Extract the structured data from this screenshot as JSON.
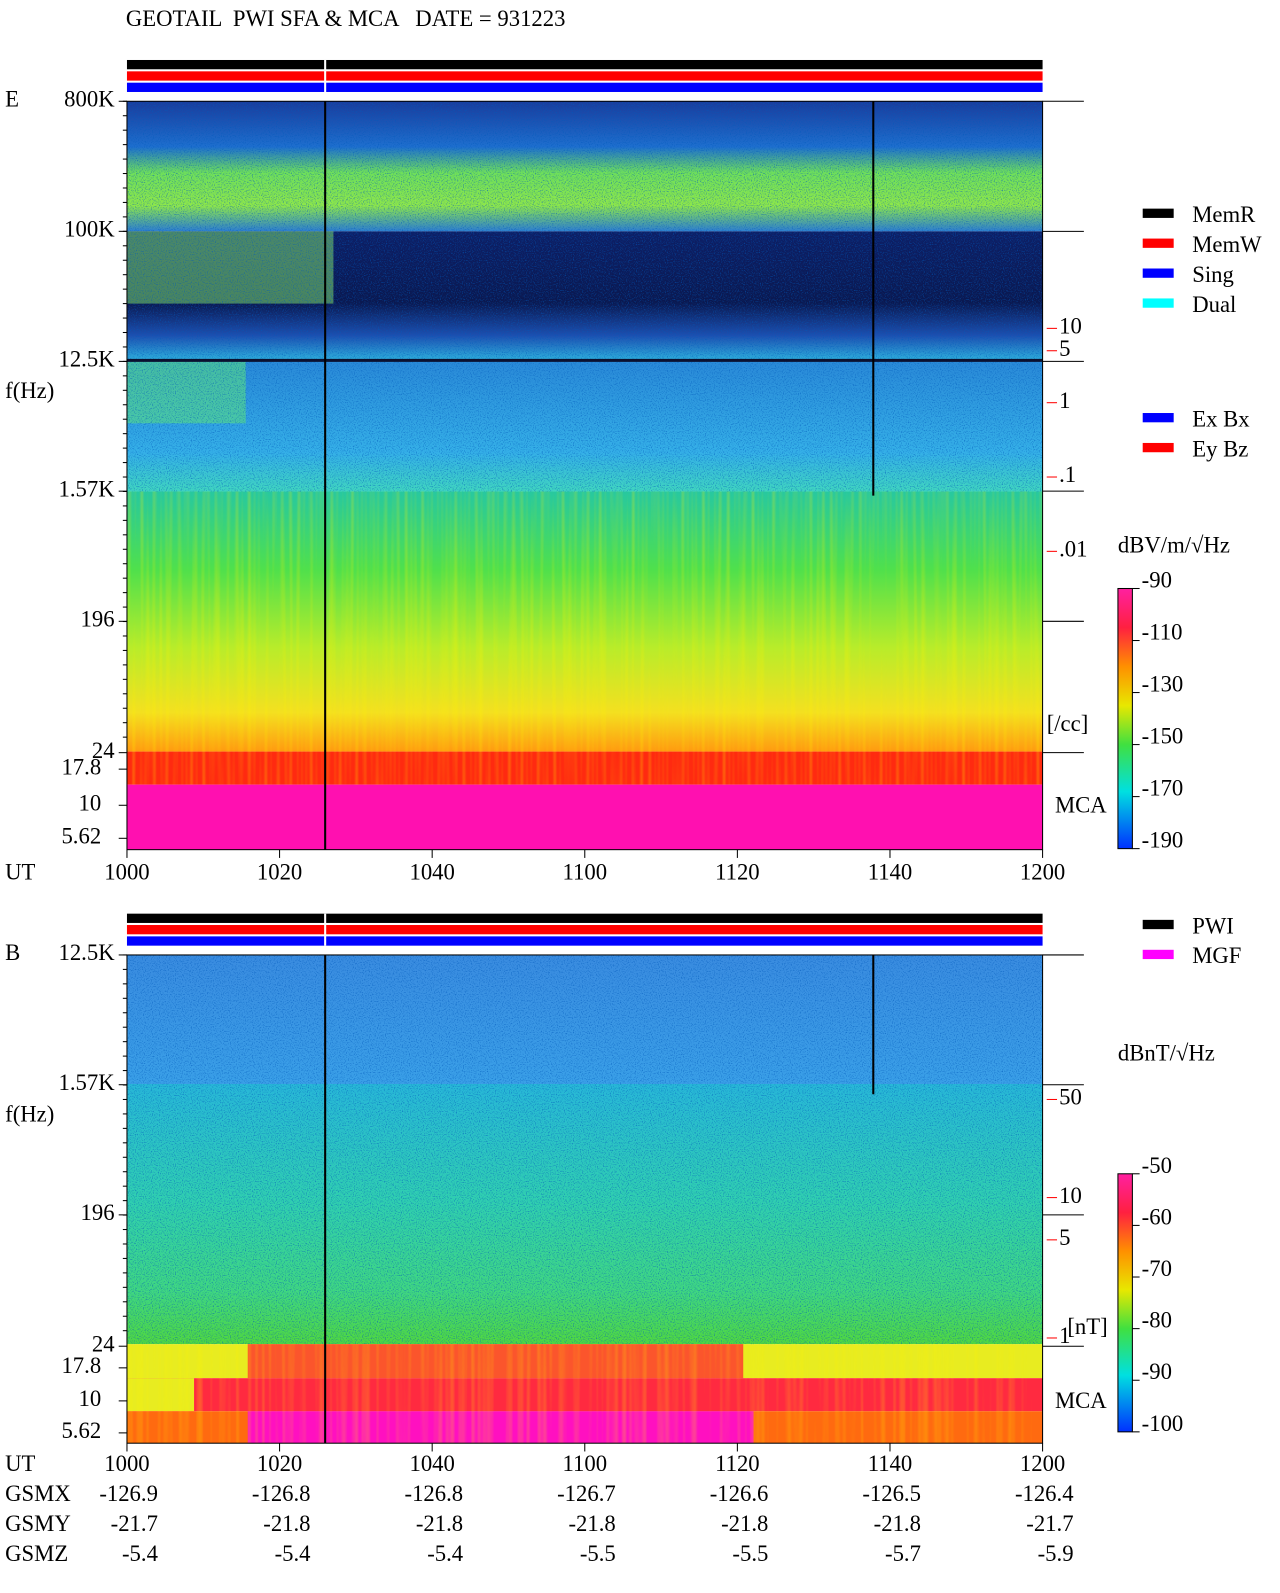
{
  "title": "GEOTAIL  PWI SFA & MCA   DATE = 931223",
  "panels": [
    {
      "label": "E",
      "ylabel": "f(Hz)",
      "freq_ticks": [
        {
          "value": 800000,
          "label": "800K"
        },
        {
          "value": 100000,
          "label": "100K"
        },
        {
          "value": 12500,
          "label": "12.5K"
        },
        {
          "value": 1570,
          "label": "1.57K"
        },
        196,
        24
      ],
      "mca_label": "MCA",
      "mca_ticks": [
        17.8,
        10,
        5.62
      ],
      "x_label": "UT",
      "x_ticks": [
        1000,
        1020,
        1040,
        1100,
        1120,
        1140,
        1200
      ],
      "right_scale": {
        "ticks": [
          10,
          5,
          1,
          {
            "value": 0.1,
            "label": ".1"
          },
          {
            "value": 0.01,
            "label": ".01"
          }
        ],
        "unit": "[/cc]",
        "color": "#ff0000"
      },
      "colorbar": {
        "unit": "dBV/m/√Hz",
        "ticks": [
          -90,
          -110,
          -130,
          -150,
          -170,
          -190
        ]
      },
      "legend": [
        {
          "name": "MemR",
          "color": "#000000"
        },
        {
          "name": "MemW",
          "color": "#ff0000"
        },
        {
          "name": "Sing",
          "color": "#0000ff"
        },
        {
          "name": "Dual",
          "color": "#00ffff"
        }
      ],
      "legend2": [
        {
          "name": "Ex Bx",
          "color": "#0000ff"
        },
        {
          "name": "Ey Bz",
          "color": "#ff0000"
        }
      ]
    },
    {
      "label": "B",
      "ylabel": "f(Hz)",
      "freq_ticks": [
        {
          "value": 12500,
          "label": "12.5K"
        },
        {
          "value": 1570,
          "label": "1.57K"
        },
        196,
        24
      ],
      "mca_label": "MCA",
      "mca_ticks": [
        17.8,
        10,
        5.62
      ],
      "x_label": "UT",
      "x_ticks": [
        1000,
        1020,
        1040,
        1100,
        1120,
        1140,
        1200
      ],
      "right_scale": {
        "ticks": [
          50,
          10,
          5,
          1
        ],
        "unit": "[nT]",
        "color": "#ff0000"
      },
      "colorbar": {
        "unit": "dBnT/√Hz",
        "ticks": [
          -50,
          -60,
          -70,
          -80,
          -90,
          -100
        ]
      },
      "legend": [
        {
          "name": "PWI",
          "color": "#000000"
        },
        {
          "name": "MGF",
          "color": "#ff00ff"
        }
      ]
    }
  ],
  "orbit": [
    {
      "label": "GSMX",
      "values": [
        -126.9,
        -126.8,
        -126.8,
        -126.7,
        -126.6,
        -126.5,
        -126.4
      ]
    },
    {
      "label": "GSMY",
      "values": [
        -21.7,
        -21.8,
        -21.8,
        -21.8,
        -21.8,
        -21.8,
        -21.7
      ]
    },
    {
      "label": "GSMZ",
      "values": [
        -5.4,
        -5.4,
        -5.4,
        -5.5,
        -5.5,
        -5.7,
        -5.9
      ]
    }
  ]
}
